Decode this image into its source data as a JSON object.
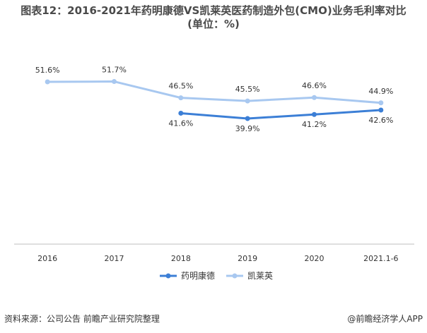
{
  "title": {
    "line1": "图表12：2016-2021年药明康德VS凯莱英医药制造外包(CMO)业务毛利率对比",
    "line2": "(单位：%)"
  },
  "chart_data": {
    "type": "line",
    "categories": [
      "2016",
      "2017",
      "2018",
      "2019",
      "2020",
      "2021.1-6"
    ],
    "series": [
      {
        "name": "药明康德",
        "color": "#3c7fd6",
        "values": [
          null,
          null,
          41.6,
          39.9,
          41.2,
          42.6
        ]
      },
      {
        "name": "凯莱英",
        "color": "#a8c8f0",
        "values": [
          51.6,
          51.7,
          46.5,
          45.5,
          46.6,
          44.9
        ]
      }
    ],
    "ylim": [
      0,
      60
    ],
    "grid": false,
    "legend": "bottom"
  },
  "source": "资料来源：公司公告 前瞻产业研究院整理",
  "brand": "@前瞻经济学人APP"
}
